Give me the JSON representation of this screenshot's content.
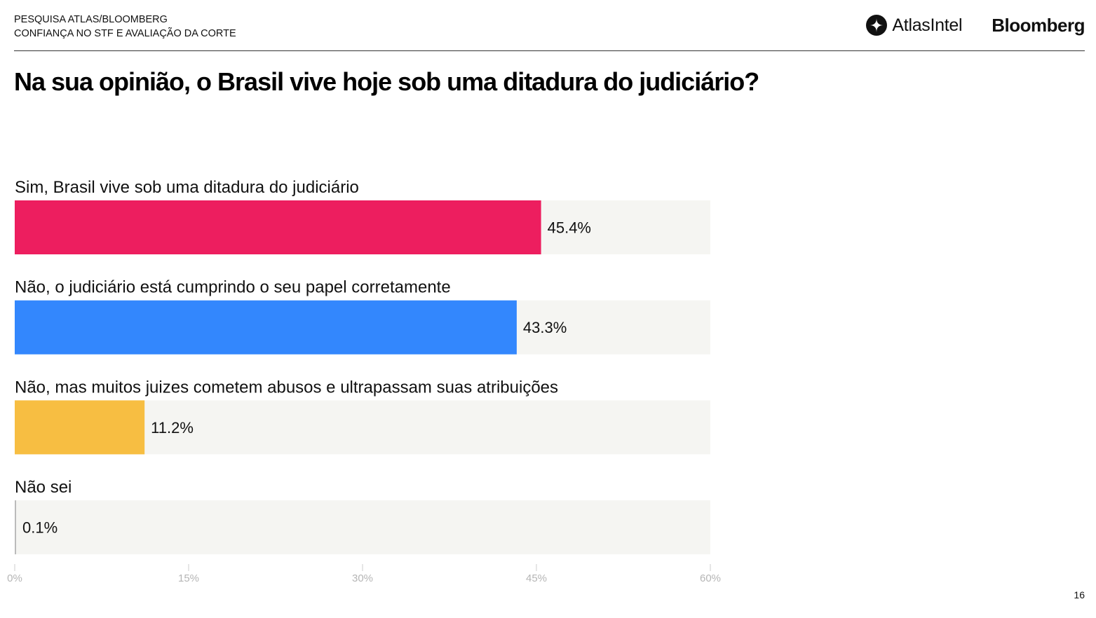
{
  "header": {
    "line1": "PESQUISA ATLAS/BLOOMBERG",
    "line2": "CONFIANÇA NO STF E AVALIAÇÃO DA CORTE"
  },
  "logos": {
    "atlas_icon": "atlasintel-logo-icon",
    "atlas_name": "AtlasIntel",
    "bloomberg_name": "Bloomberg"
  },
  "page_number": "16",
  "chart_data": {
    "type": "bar",
    "orientation": "horizontal",
    "title": "Na sua opinião, o Brasil vive hoje sob uma ditadura do judiciário?",
    "categories": [
      "Sim, Brasil vive sob uma ditadura do judiciário",
      "Não, o judiciário está cumprindo o seu papel corretamente",
      "Não, mas muitos juizes cometem abusos e ultrapassam suas atribuições",
      "Não sei"
    ],
    "values": [
      45.4,
      43.3,
      11.2,
      0.1
    ],
    "value_labels": [
      "45.4%",
      "43.3%",
      "11.2%",
      "0.1%"
    ],
    "colors": [
      "#ED1E5F",
      "#3387FD",
      "#F7BE42",
      "#BBBBBB"
    ],
    "track_color": "#F5F5F2",
    "xlim": [
      0,
      60
    ],
    "xticks": [
      0,
      15,
      30,
      45,
      60
    ],
    "xtick_labels": [
      "0%",
      "15%",
      "30%",
      "45%",
      "60%"
    ],
    "grid": false
  }
}
